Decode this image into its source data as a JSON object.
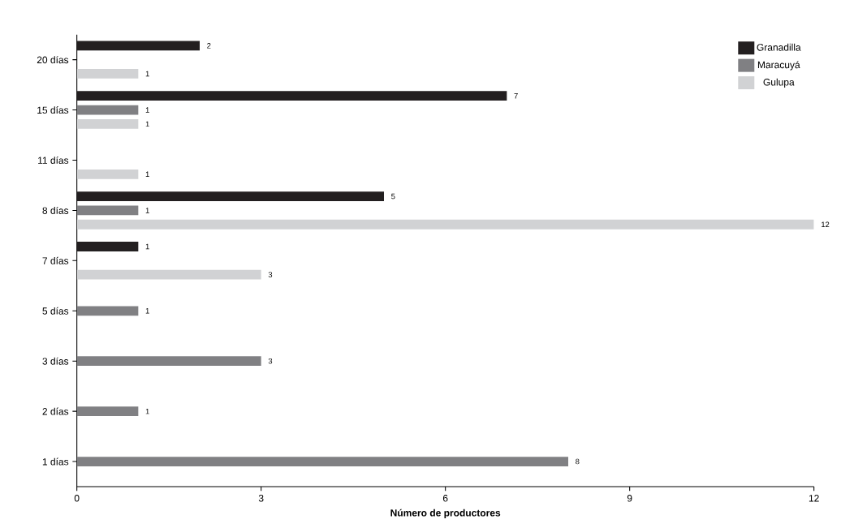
{
  "chart_data": {
    "type": "bar",
    "orientation": "horizontal",
    "xlabel": "Número de productores",
    "categories": [
      "20 días",
      "15 días",
      "11 días",
      "8 días",
      "7 días",
      "5 días",
      "3 días",
      "2 días",
      "1 días"
    ],
    "series": [
      {
        "name": "Granadilla",
        "color": "#231f20",
        "values": [
          2,
          7,
          null,
          5,
          1,
          null,
          null,
          null,
          null
        ]
      },
      {
        "name": "Maracuyá",
        "color": "#808083",
        "values": [
          null,
          1,
          null,
          1,
          null,
          1,
          3,
          1,
          8
        ]
      },
      {
        "name": "Gulupa",
        "color": "#d1d2d4",
        "values": [
          1,
          1,
          1,
          12,
          3,
          null,
          null,
          null,
          null
        ]
      }
    ],
    "xlim": [
      0,
      12
    ],
    "xticks": [
      0,
      3,
      6,
      9,
      12
    ],
    "data_labels": true,
    "legend": "top right"
  }
}
